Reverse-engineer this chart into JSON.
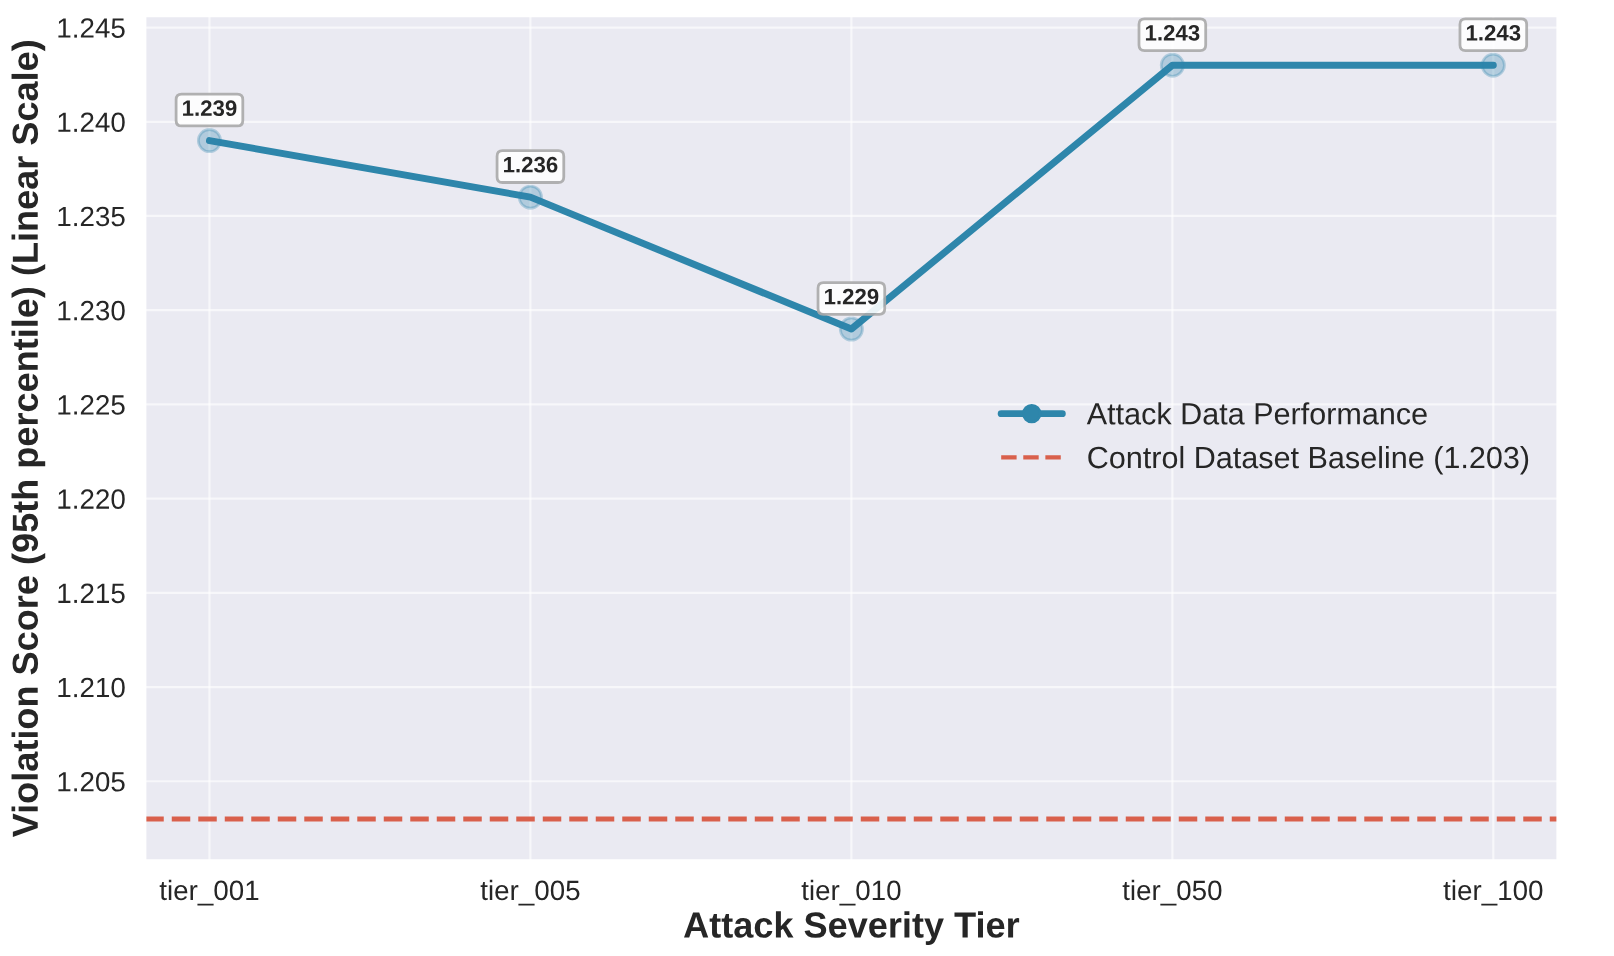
{
  "chart_data": {
    "type": "line",
    "xlabel": "Attack Severity Tier",
    "ylabel": "Violation Score (95th percentile) (Linear Scale)",
    "categories": [
      "tier_001",
      "tier_005",
      "tier_010",
      "tier_050",
      "tier_100"
    ],
    "series": [
      {
        "name": "Attack Data Performance",
        "color": "#2e86ab",
        "values": [
          1.239,
          1.236,
          1.229,
          1.243,
          1.243
        ]
      }
    ],
    "data_labels": true,
    "marker": "circle",
    "line_style": "solid",
    "ylim": [
      1.2008,
      1.2456
    ],
    "yticks": [
      1.205,
      {
        "value": 1.21,
        "label": "1.210"
      },
      1.215,
      {
        "value": 1.22,
        "label": "1.220"
      },
      1.225,
      {
        "value": 1.23,
        "label": "1.230"
      },
      1.235,
      {
        "value": 1.24,
        "label": "1.240"
      },
      1.245
    ],
    "ref_lines": [
      {
        "axis": "y",
        "value": 1.203,
        "label": "Control Dataset Baseline (1.203)",
        "color": "#d9604c",
        "line_style": "dashed"
      }
    ],
    "grid": true,
    "legend": "right"
  }
}
